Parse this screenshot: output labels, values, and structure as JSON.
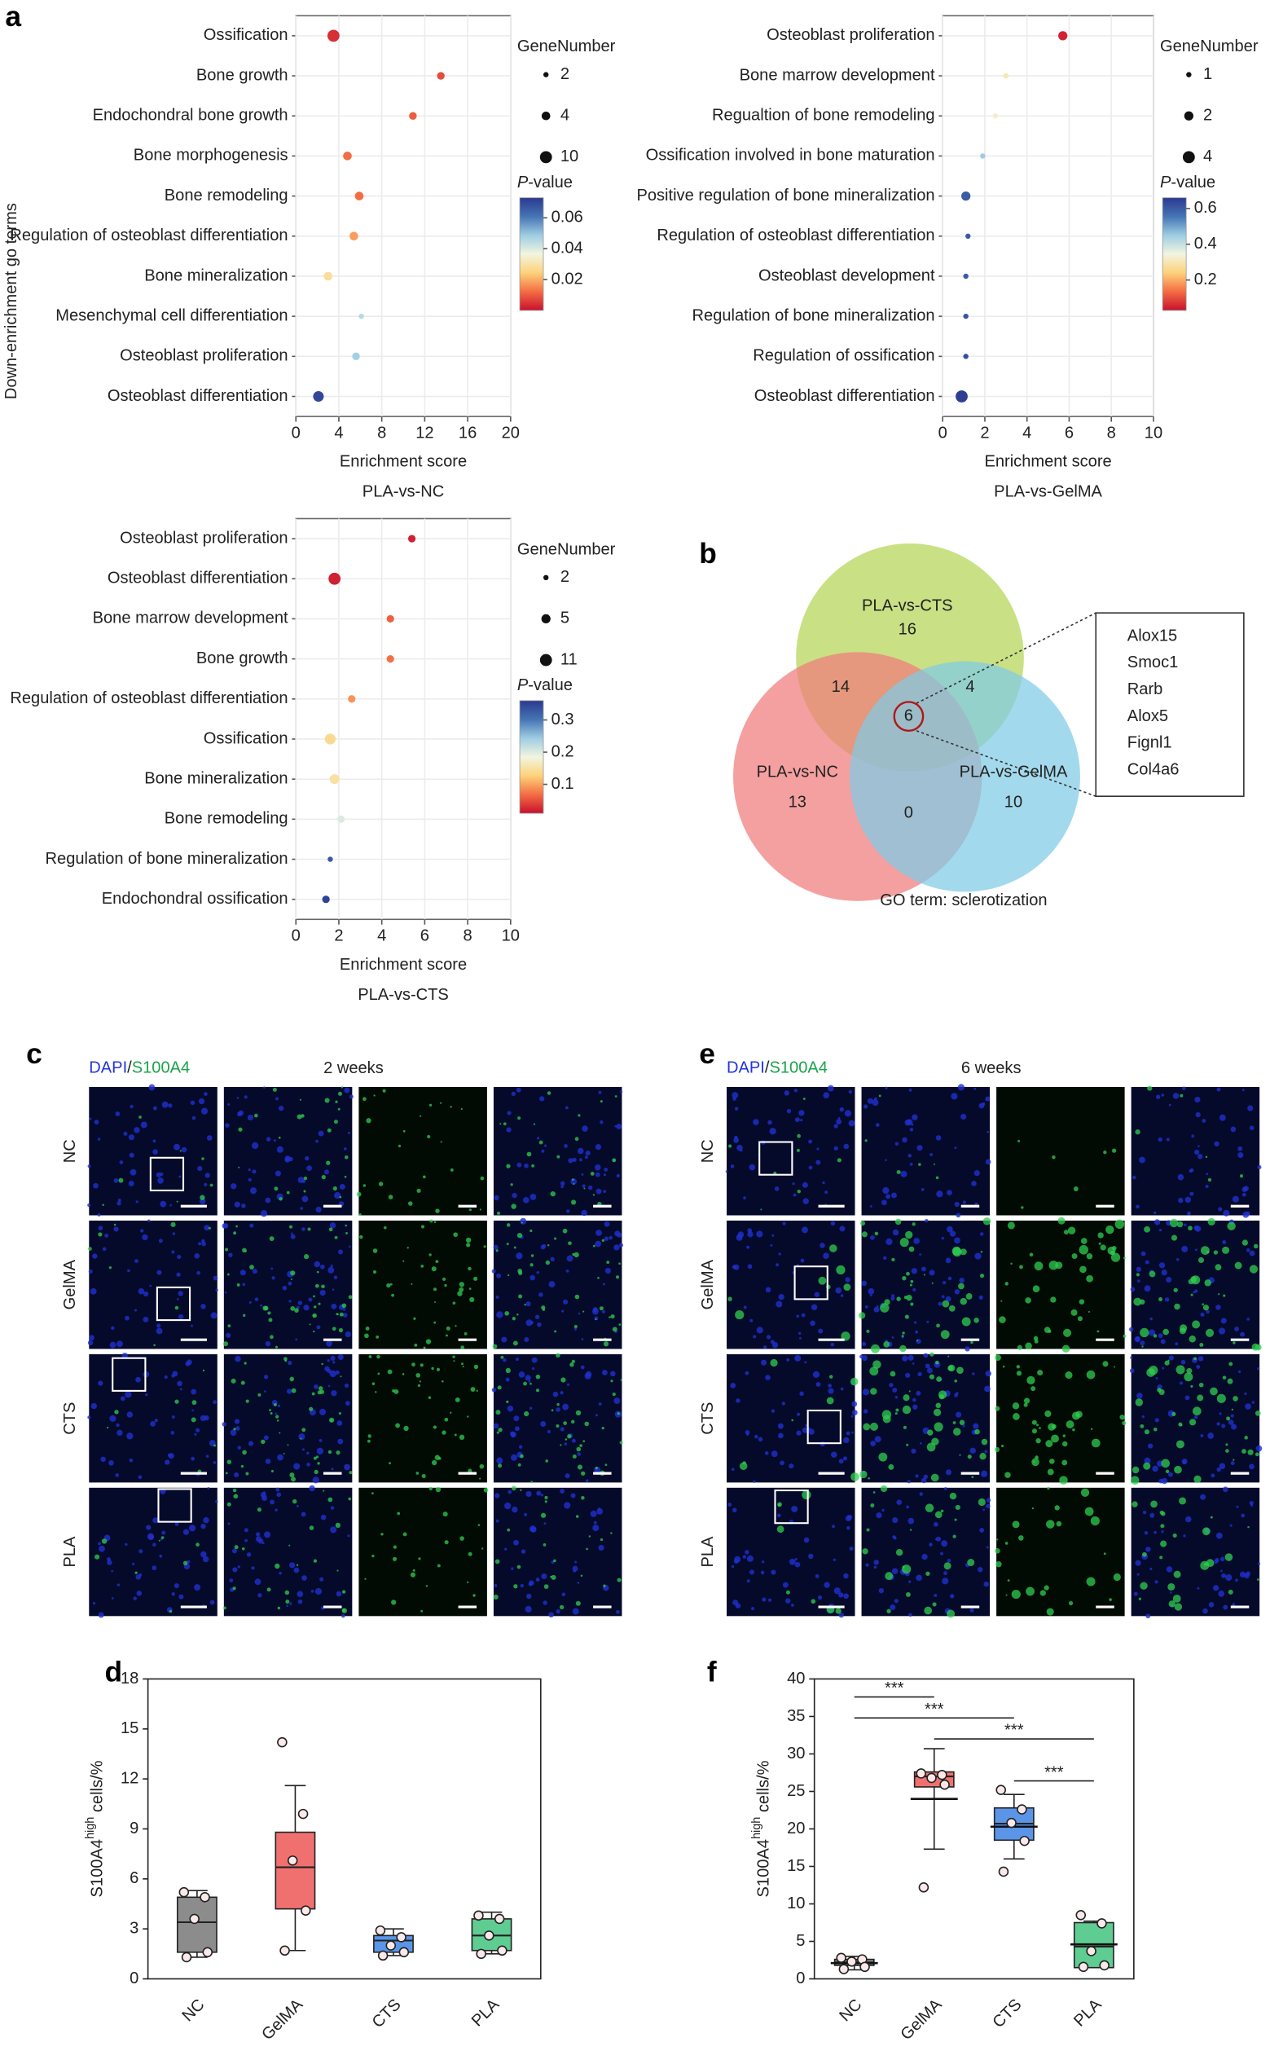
{
  "figure": {
    "ylabel": "Down-enrichment go terms",
    "letters": [
      "a",
      "b",
      "c",
      "d",
      "e",
      "f"
    ]
  },
  "micrographs": [
    {
      "stain_a": "DAPI",
      "sep": "/",
      "stain_b": "S100A4",
      "time": "2 weeks",
      "rows": [
        "NC",
        "GelMA",
        "CTS",
        "PLA"
      ]
    },
    {
      "stain_a": "DAPI",
      "sep": "/",
      "stain_b": "S100A4",
      "time": "6 weeks",
      "rows": [
        "NC",
        "GelMA",
        "CTS",
        "PLA"
      ]
    }
  ],
  "chart_data": [
    {
      "type": "dot",
      "title": "PLA-vs-NC",
      "xlabel": "Enrichment score",
      "categories": [
        "Ossification",
        "Bone growth",
        "Endochondral bone growth",
        "Bone morphogenesis",
        "Bone remodeling",
        "Regulation of osteoblast differentiation",
        "Bone mineralization",
        "Mesenchymal cell differentiation",
        "Osteoblast proliferation",
        "Osteoblast differentiation"
      ],
      "values": [
        3.5,
        13.5,
        10.9,
        4.8,
        5.9,
        5.4,
        3.0,
        6.1,
        5.6,
        2.1
      ],
      "sizes": [
        10,
        3,
        3,
        4,
        4,
        4,
        4,
        2,
        3,
        7
      ],
      "pvalues": [
        0.004,
        0.008,
        0.01,
        0.012,
        0.012,
        0.018,
        0.028,
        0.045,
        0.048,
        0.07
      ],
      "xlim": [
        0,
        20
      ],
      "xticks": [
        0,
        4,
        8,
        12,
        16,
        20
      ],
      "grid": true,
      "size_title": "GeneNumber",
      "size_legend": [
        2,
        4,
        10
      ],
      "colorbar_title": {
        "italic": "P",
        "rest": "-value"
      },
      "clim": [
        0,
        0.073
      ],
      "cticks": [
        0.06,
        0.04,
        0.02
      ],
      "colormap": [
        "#c8102e",
        "#f46d43",
        "#fdd27a",
        "#f2f5e0",
        "#9ecde2",
        "#4575b4",
        "#2b3990"
      ]
    },
    {
      "type": "dot",
      "title": "PLA-vs-GelMA",
      "xlabel": "Enrichment score",
      "categories": [
        "Osteoblast proliferation",
        "Bone marrow development",
        "Regualtion of bone remodeling",
        "Ossification involved in bone maturation",
        "Positive regulation of bone mineralization",
        "Regulation of osteoblast differentiation",
        "Osteoblast development",
        "Regulation of bone mineralization",
        "Regulation of ossification",
        "Osteoblast differentiation"
      ],
      "values": [
        5.7,
        3.0,
        2.5,
        1.9,
        1.1,
        1.2,
        1.1,
        1.1,
        1.1,
        0.9
      ],
      "sizes": [
        2,
        1,
        1,
        1,
        2,
        1,
        1,
        1,
        1,
        4
      ],
      "pvalues": [
        0.05,
        0.3,
        0.32,
        0.45,
        0.6,
        0.6,
        0.6,
        0.61,
        0.62,
        0.65
      ],
      "xlim": [
        0,
        10
      ],
      "xticks": [
        0,
        2,
        4,
        6,
        8,
        10
      ],
      "grid": true,
      "size_title": "GeneNumber",
      "size_legend": [
        1,
        2,
        4
      ],
      "colorbar_title": {
        "italic": "P",
        "rest": "-value"
      },
      "clim": [
        0.03,
        0.66
      ],
      "cticks": [
        0.6,
        0.4,
        0.2
      ],
      "colormap": [
        "#c8102e",
        "#f46d43",
        "#fdd27a",
        "#f2f5e0",
        "#9ecde2",
        "#4575b4",
        "#2b3990"
      ]
    },
    {
      "type": "dot",
      "title": "PLA-vs-CTS",
      "xlabel": "Enrichment score",
      "categories": [
        "Osteoblast proliferation",
        "Osteoblast differentiation",
        "Bone marrow development",
        "Bone growth",
        "Regulation of osteoblast differentiation",
        "Ossification",
        "Bone mineralization",
        "Bone remodeling",
        "Regulation of bone mineralization",
        "Endochondral ossification"
      ],
      "values": [
        5.4,
        1.8,
        4.4,
        4.4,
        2.6,
        1.6,
        1.8,
        2.1,
        1.6,
        1.4
      ],
      "sizes": [
        3,
        11,
        3,
        3,
        3,
        8,
        6,
        3,
        2,
        3
      ],
      "pvalues": [
        0.02,
        0.02,
        0.06,
        0.07,
        0.09,
        0.14,
        0.15,
        0.2,
        0.33,
        0.35
      ],
      "xlim": [
        0,
        10
      ],
      "xticks": [
        0,
        2,
        4,
        6,
        8,
        10
      ],
      "grid": true,
      "size_title": "GeneNumber",
      "size_legend": [
        2,
        5,
        11
      ],
      "colorbar_title": {
        "italic": "P",
        "rest": "-value"
      },
      "clim": [
        0.01,
        0.36
      ],
      "cticks": [
        0.3,
        0.2,
        0.1
      ],
      "colormap": [
        "#c8102e",
        "#f46d43",
        "#fdd27a",
        "#f2f5e0",
        "#9ecde2",
        "#4575b4",
        "#2b3990"
      ]
    },
    {
      "type": "venn",
      "title": "GO term: sclerotization",
      "sets": [
        {
          "name": "PLA-vs-CTS",
          "color": "#b4d455"
        },
        {
          "name": "PLA-vs-NC",
          "color": "#f07c7c"
        },
        {
          "name": "PLA-vs-GelMA",
          "color": "#7fcbe5"
        }
      ],
      "regions": [
        {
          "sets": [
            0
          ],
          "value": 16
        },
        {
          "sets": [
            0,
            1
          ],
          "value": 14
        },
        {
          "sets": [
            0,
            2
          ],
          "value": 4
        },
        {
          "sets": [
            0,
            1,
            2
          ],
          "value": 6
        },
        {
          "sets": [
            1
          ],
          "value": 13
        },
        {
          "sets": [
            1,
            2
          ],
          "value": 0
        },
        {
          "sets": [
            2
          ],
          "value": 10
        }
      ],
      "highlight_genes": [
        "Alox15",
        "Smoc1",
        "Rarb",
        "Alox5",
        "Fignl1",
        "Col4a6"
      ]
    },
    {
      "type": "box",
      "ylabel": {
        "main": "S100A4",
        "sup": "high",
        "rest": " cells/%"
      },
      "ylim": [
        0,
        18
      ],
      "yticks": [
        0,
        3,
        6,
        9,
        12,
        15,
        18
      ],
      "series": [
        {
          "name": "NC",
          "color": "#8c8c8c",
          "points": [
            5.2,
            4.9,
            3.6,
            1.6,
            1.3
          ],
          "q1": 1.6,
          "median": 3.4,
          "q3": 4.9,
          "low": 1.3,
          "high": 5.3
        },
        {
          "name": "GelMA",
          "color": "#f07070",
          "points": [
            14.2,
            9.9,
            7.1,
            4.1,
            1.7
          ],
          "q1": 4.2,
          "median": 6.7,
          "q3": 8.8,
          "low": 1.7,
          "high": 11.6
        },
        {
          "name": "CTS",
          "color": "#5b95e8",
          "points": [
            2.9,
            2.5,
            2.0,
            1.6,
            1.4
          ],
          "q1": 1.6,
          "median": 2.3,
          "q3": 2.6,
          "low": 1.4,
          "high": 3.0
        },
        {
          "name": "PLA",
          "color": "#5fcc92",
          "points": [
            3.8,
            3.6,
            2.6,
            1.7,
            1.5
          ],
          "q1": 1.7,
          "median": 2.6,
          "q3": 3.6,
          "low": 1.5,
          "high": 4.0
        }
      ]
    },
    {
      "type": "box",
      "ylabel": {
        "main": "S100A4",
        "sup": "high",
        "rest": " cells/%"
      },
      "ylim": [
        0,
        40
      ],
      "yticks": [
        0,
        5,
        10,
        15,
        20,
        25,
        30,
        35,
        40
      ],
      "series": [
        {
          "name": "NC",
          "color": "#8c8c8c",
          "points": [
            2.8,
            2.6,
            2.3,
            1.6,
            1.3
          ],
          "q1": 1.8,
          "median": 2.2,
          "q3": 2.6,
          "mean": 2.1,
          "low": 1.2,
          "high": 3.0
        },
        {
          "name": "GelMA",
          "color": "#f07070",
          "points": [
            27.4,
            27.2,
            26.8,
            25.9,
            12.2
          ],
          "q1": 25.6,
          "median": 27.0,
          "q3": 27.6,
          "mean": 24.0,
          "low": 17.3,
          "high": 30.7
        },
        {
          "name": "CTS",
          "color": "#5b95e8",
          "points": [
            25.2,
            22.6,
            20.8,
            18.4,
            14.3
          ],
          "q1": 18.5,
          "median": 20.7,
          "q3": 22.8,
          "mean": 20.3,
          "low": 16.0,
          "high": 24.6
        },
        {
          "name": "PLA",
          "color": "#5fcc92",
          "points": [
            8.5,
            7.4,
            3.7,
            1.8,
            1.6
          ],
          "q1": 1.5,
          "median": 4.3,
          "q3": 7.5,
          "mean": 4.6,
          "low": 1.5,
          "high": 7.7
        }
      ],
      "comparisons": [
        {
          "pair": [
            0,
            1
          ],
          "y": 37.6,
          "label": "***"
        },
        {
          "pair": [
            0,
            2
          ],
          "y": 34.8,
          "label": "***"
        },
        {
          "pair": [
            1,
            3
          ],
          "y": 32.0,
          "label": "***"
        },
        {
          "pair": [
            2,
            3
          ],
          "y": 26.4,
          "label": "***"
        }
      ]
    }
  ]
}
